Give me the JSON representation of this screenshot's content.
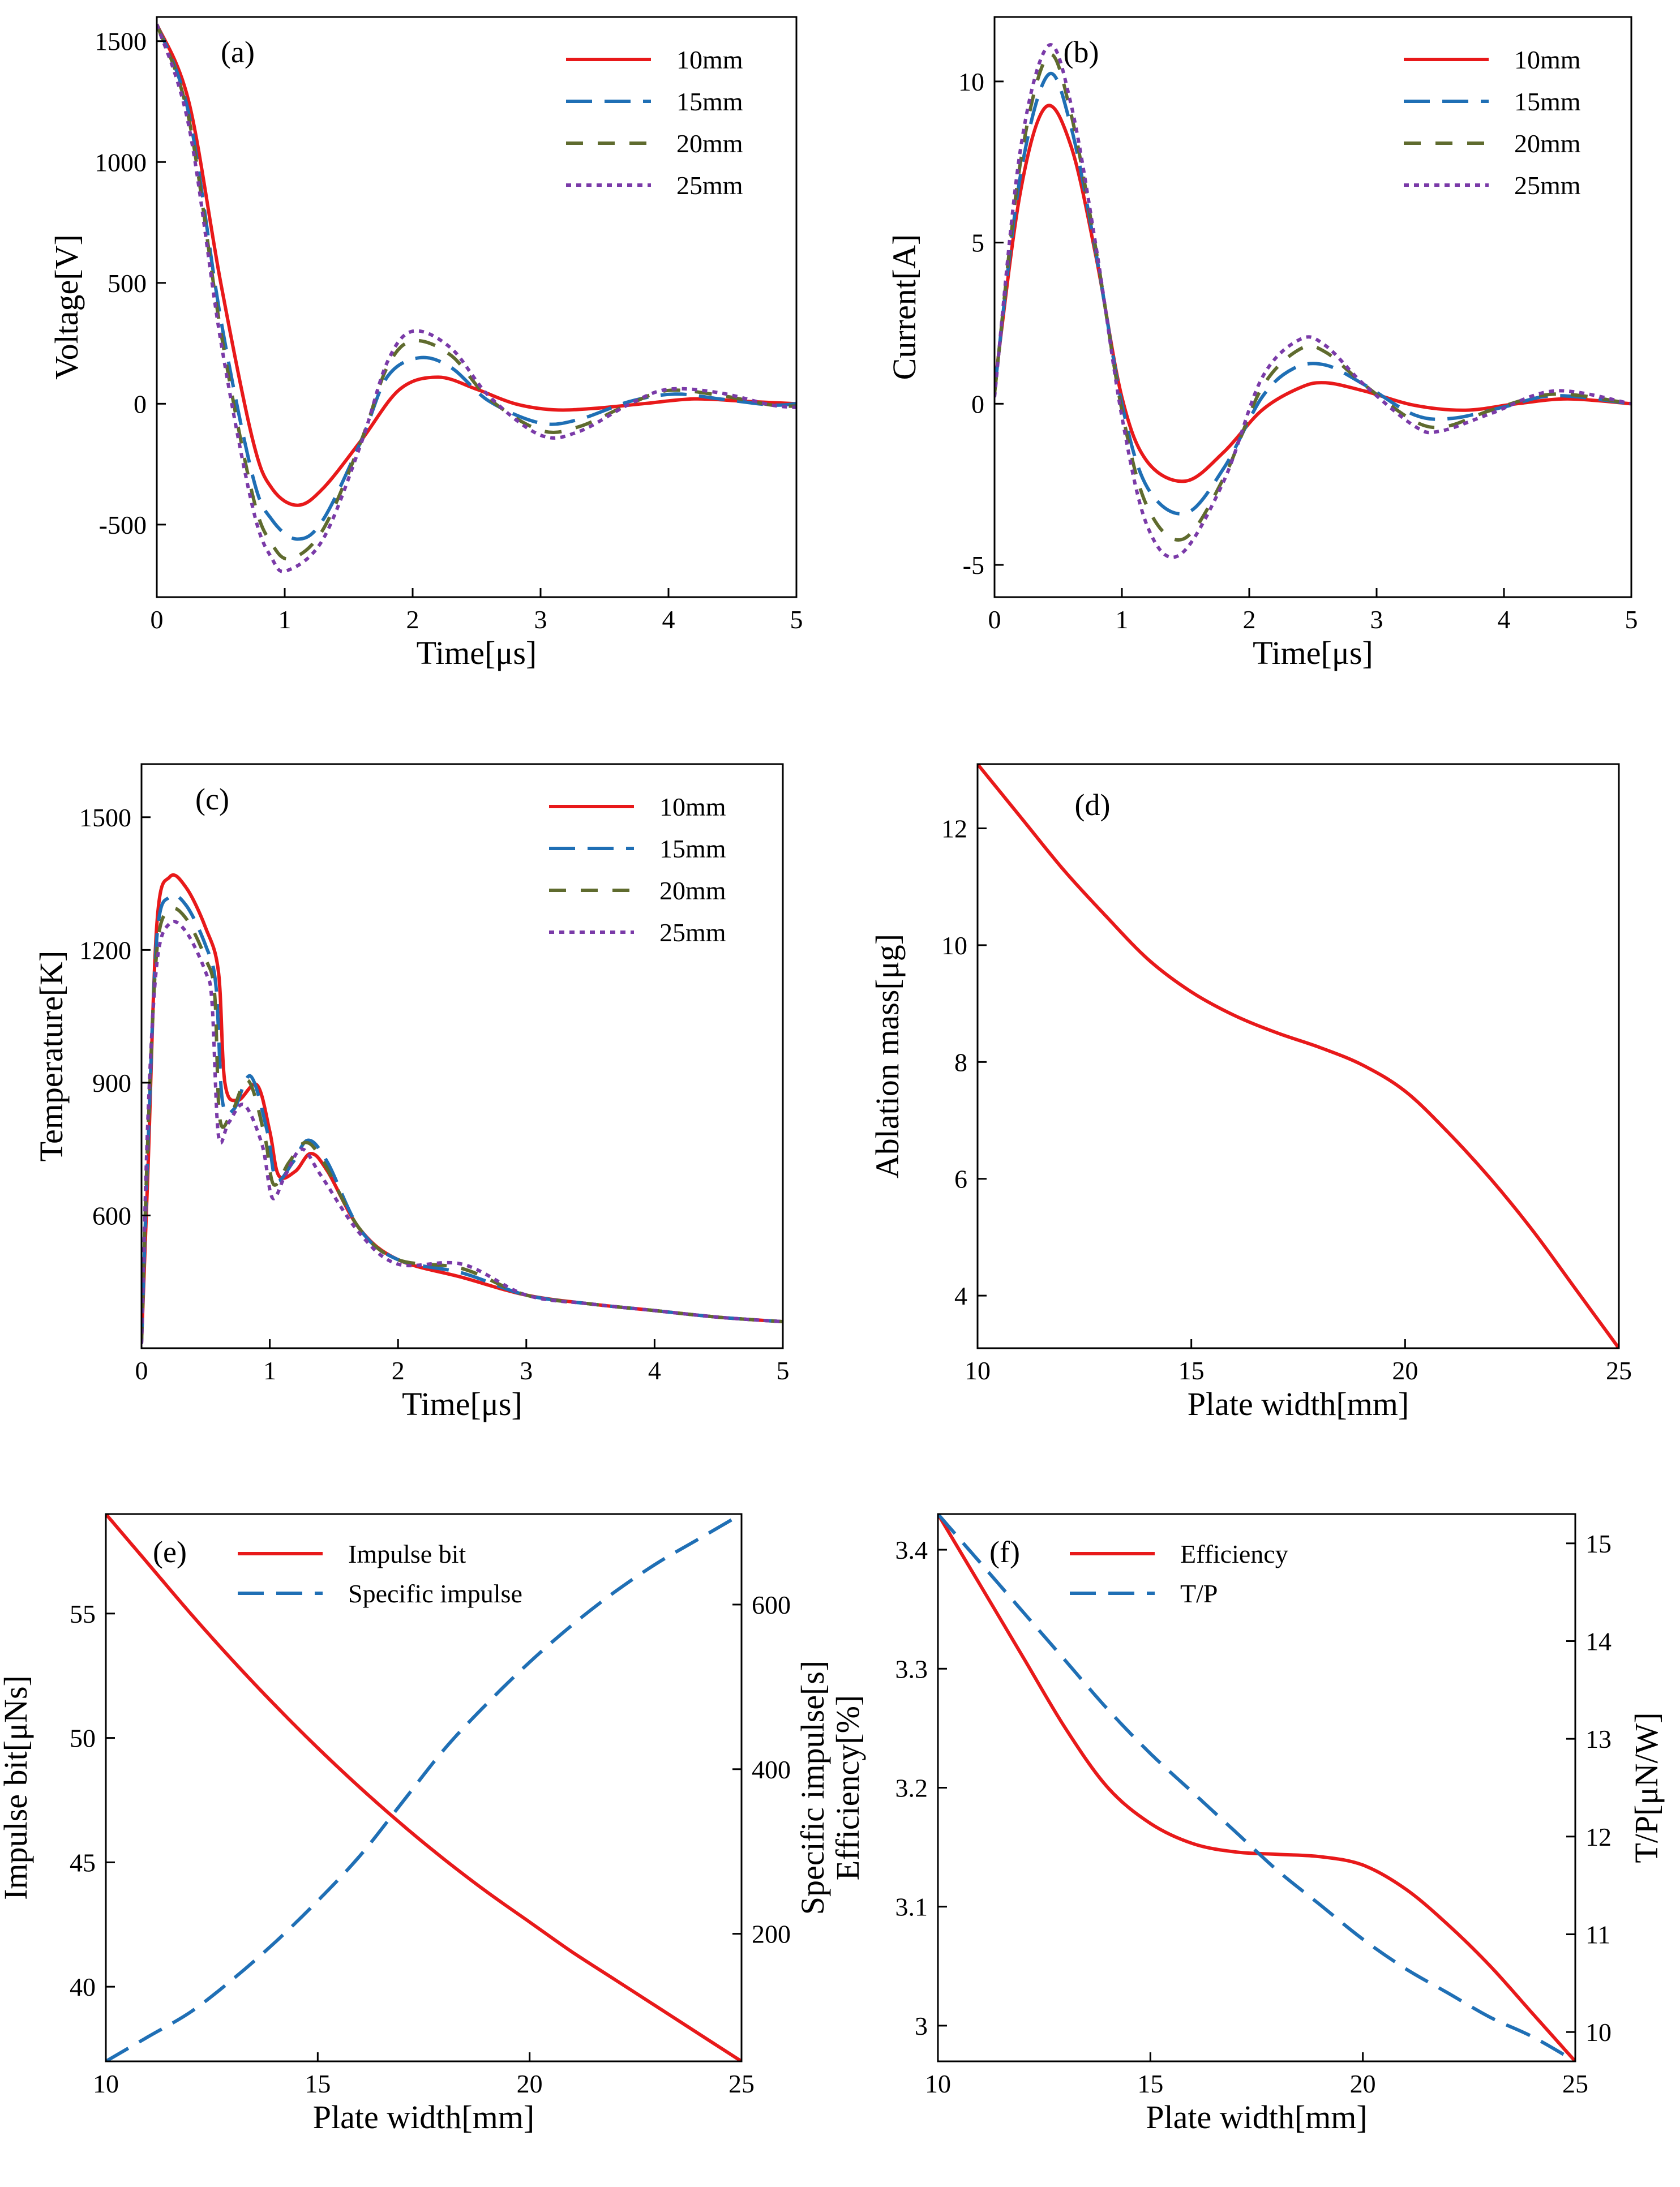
{
  "figure": {
    "panels_order": [
      "a",
      "b",
      "c",
      "d",
      "e",
      "f"
    ]
  },
  "chart_data": [
    {
      "id": "a",
      "type": "line",
      "panel_label": "(a)",
      "xlabel": "Time[μs]",
      "ylabel": "Voltage[V]",
      "xlim": [
        0,
        5
      ],
      "ylim": [
        -800,
        1600
      ],
      "xticks": [
        0,
        1,
        2,
        3,
        4,
        5
      ],
      "yticks": [
        -500,
        0,
        500,
        1000,
        1500
      ],
      "xtick_labels": [
        "0",
        "1",
        "2",
        "3",
        "4",
        "5"
      ],
      "ytick_labels": [
        "-500",
        "0",
        "500",
        "1000",
        "1500"
      ],
      "legend": {
        "position": "top-right"
      },
      "series": [
        {
          "name": "10mm",
          "color": "#e8191a",
          "dash": "solid",
          "x": [
            0,
            0.25,
            0.5,
            0.75,
            0.9,
            1.1,
            1.3,
            1.6,
            1.9,
            2.2,
            2.5,
            2.8,
            3.1,
            3.4,
            3.8,
            4.2,
            4.6,
            5.0
          ],
          "y": [
            1570,
            1250,
            500,
            -150,
            -350,
            -420,
            -350,
            -150,
            60,
            110,
            60,
            0,
            -25,
            -20,
            0,
            20,
            10,
            0
          ]
        },
        {
          "name": "15mm",
          "color": "#1f6fb5",
          "dash": "longdash",
          "x": [
            0,
            0.25,
            0.5,
            0.75,
            0.9,
            1.1,
            1.3,
            1.6,
            1.8,
            2.05,
            2.3,
            2.6,
            3.0,
            3.3,
            3.7,
            4.05,
            4.4,
            4.8,
            5.0
          ],
          "y": [
            1570,
            1200,
            350,
            -300,
            -480,
            -560,
            -480,
            -150,
            110,
            190,
            150,
            10,
            -80,
            -65,
            10,
            40,
            20,
            -5,
            0
          ]
        },
        {
          "name": "20mm",
          "color": "#5f6b2e",
          "dash": "dash",
          "x": [
            0,
            0.25,
            0.5,
            0.75,
            0.9,
            1.05,
            1.3,
            1.6,
            1.8,
            2.0,
            2.3,
            2.6,
            3.0,
            3.3,
            3.7,
            4.0,
            4.4,
            4.8,
            5.0
          ],
          "y": [
            1570,
            1180,
            300,
            -380,
            -580,
            -640,
            -520,
            -150,
            150,
            260,
            200,
            20,
            -110,
            -95,
            0,
            55,
            35,
            -5,
            -10
          ]
        },
        {
          "name": "25mm",
          "color": "#7a3aa8",
          "dash": "dot",
          "x": [
            0,
            0.25,
            0.5,
            0.75,
            0.9,
            1.02,
            1.3,
            1.6,
            1.8,
            2.0,
            2.3,
            2.6,
            3.0,
            3.3,
            3.7,
            4.0,
            4.4,
            4.8,
            5.0
          ],
          "y": [
            1570,
            1150,
            260,
            -430,
            -640,
            -690,
            -560,
            -160,
            170,
            300,
            230,
            30,
            -130,
            -115,
            0,
            60,
            45,
            -5,
            -15
          ]
        }
      ]
    },
    {
      "id": "b",
      "type": "line",
      "panel_label": "(b)",
      "xlabel": "Time[μs]",
      "ylabel": "Current[A]",
      "xlim": [
        0,
        5
      ],
      "ylim": [
        -6,
        12
      ],
      "xticks": [
        0,
        1,
        2,
        3,
        4,
        5
      ],
      "yticks": [
        -5,
        0,
        5,
        10
      ],
      "xtick_labels": [
        "0",
        "1",
        "2",
        "3",
        "4",
        "5"
      ],
      "ytick_labels": [
        "-5",
        "0",
        "5",
        "10"
      ],
      "legend": {
        "position": "top-right"
      },
      "series": [
        {
          "name": "10mm",
          "color": "#e8191a",
          "dash": "solid",
          "x": [
            0,
            0.2,
            0.4,
            0.6,
            0.8,
            1.0,
            1.2,
            1.5,
            1.8,
            2.1,
            2.4,
            2.6,
            2.9,
            3.3,
            3.7,
            4.1,
            4.5,
            5.0
          ],
          "y": [
            0.5,
            6.5,
            9.2,
            8.0,
            4.5,
            0.2,
            -1.8,
            -2.4,
            -1.5,
            -0.2,
            0.5,
            0.65,
            0.4,
            -0.05,
            -0.2,
            0,
            0.15,
            0
          ]
        },
        {
          "name": "15mm",
          "color": "#1f6fb5",
          "dash": "longdash",
          "x": [
            0,
            0.2,
            0.42,
            0.6,
            0.8,
            1.0,
            1.2,
            1.5,
            1.8,
            2.1,
            2.35,
            2.6,
            2.9,
            3.3,
            3.6,
            4.0,
            4.4,
            5.0
          ],
          "y": [
            0.4,
            7.0,
            10.2,
            8.6,
            4.6,
            0,
            -2.6,
            -3.4,
            -2.0,
            0.2,
            1.1,
            1.2,
            0.6,
            -0.35,
            -0.45,
            -0.1,
            0.25,
            0
          ]
        },
        {
          "name": "20mm",
          "color": "#5f6b2e",
          "dash": "dash",
          "x": [
            0,
            0.2,
            0.42,
            0.6,
            0.8,
            1.0,
            1.2,
            1.48,
            1.8,
            2.1,
            2.4,
            2.6,
            2.9,
            3.3,
            3.55,
            3.9,
            4.4,
            5.0
          ],
          "y": [
            0.3,
            7.4,
            10.8,
            9.0,
            4.7,
            -0.2,
            -3.2,
            -4.2,
            -2.3,
            0.5,
            1.7,
            1.6,
            0.6,
            -0.55,
            -0.7,
            -0.2,
            0.3,
            0
          ]
        },
        {
          "name": "25mm",
          "color": "#7a3aa8",
          "dash": "dot",
          "x": [
            0,
            0.2,
            0.42,
            0.6,
            0.8,
            1.0,
            1.2,
            1.45,
            1.8,
            2.1,
            2.4,
            2.6,
            2.9,
            3.3,
            3.5,
            3.9,
            4.4,
            5.0
          ],
          "y": [
            0.2,
            7.8,
            11.1,
            9.3,
            4.8,
            -0.4,
            -3.8,
            -4.7,
            -2.4,
            0.8,
            2.0,
            1.8,
            0.6,
            -0.7,
            -0.85,
            -0.3,
            0.4,
            0
          ]
        }
      ]
    },
    {
      "id": "c",
      "type": "line",
      "panel_label": "(c)",
      "xlabel": "Time[μs]",
      "ylabel": "Temperature[K]",
      "xlim": [
        0,
        5
      ],
      "ylim": [
        300,
        1620
      ],
      "xticks": [
        0,
        1,
        2,
        3,
        4,
        5
      ],
      "yticks": [
        600,
        900,
        1200,
        1500
      ],
      "xtick_labels": [
        "0",
        "1",
        "2",
        "3",
        "4",
        "5"
      ],
      "ytick_labels": [
        "600",
        "900",
        "1200",
        "1500"
      ],
      "legend": {
        "position": "top-right"
      },
      "series": [
        {
          "name": "10mm",
          "color": "#e8191a",
          "dash": "solid",
          "x": [
            0,
            0.05,
            0.12,
            0.22,
            0.35,
            0.5,
            0.6,
            0.65,
            0.75,
            0.9,
            1.0,
            1.07,
            1.2,
            1.32,
            1.45,
            1.7,
            2.0,
            2.5,
            3.0,
            3.5,
            4.0,
            4.5,
            5.0
          ],
          "y": [
            310,
            700,
            1260,
            1365,
            1340,
            1250,
            1150,
            900,
            860,
            895,
            790,
            690,
            700,
            740,
            700,
            570,
            500,
            460,
            420,
            400,
            385,
            370,
            360
          ]
        },
        {
          "name": "15mm",
          "color": "#1f6fb5",
          "dash": "longdash",
          "x": [
            0,
            0.05,
            0.12,
            0.22,
            0.35,
            0.5,
            0.58,
            0.63,
            0.72,
            0.85,
            0.98,
            1.05,
            1.18,
            1.3,
            1.45,
            1.7,
            2.0,
            2.5,
            3.0,
            3.5,
            4.0,
            4.5,
            5.0
          ],
          "y": [
            310,
            750,
            1230,
            1320,
            1300,
            1210,
            1120,
            860,
            840,
            915,
            790,
            680,
            720,
            770,
            720,
            570,
            500,
            470,
            420,
            400,
            385,
            370,
            360
          ]
        },
        {
          "name": "20mm",
          "color": "#5f6b2e",
          "dash": "dash",
          "x": [
            0,
            0.05,
            0.12,
            0.22,
            0.35,
            0.5,
            0.57,
            0.61,
            0.7,
            0.83,
            0.96,
            1.03,
            1.15,
            1.28,
            1.42,
            1.7,
            2.0,
            2.5,
            3.0,
            3.5,
            4.0,
            4.5,
            5.0
          ],
          "y": [
            310,
            780,
            1200,
            1290,
            1270,
            1180,
            1100,
            820,
            830,
            905,
            780,
            670,
            720,
            765,
            720,
            570,
            500,
            480,
            420,
            400,
            385,
            370,
            360
          ]
        },
        {
          "name": "25mm",
          "color": "#7a3aa8",
          "dash": "dot",
          "x": [
            0,
            0.05,
            0.12,
            0.22,
            0.35,
            0.5,
            0.55,
            0.6,
            0.68,
            0.8,
            0.94,
            1.02,
            1.12,
            1.25,
            1.4,
            1.7,
            2.0,
            2.5,
            3.0,
            3.5,
            4.0,
            4.5,
            5.0
          ],
          "y": [
            310,
            820,
            1170,
            1260,
            1240,
            1150,
            1080,
            780,
            810,
            850,
            760,
            640,
            690,
            750,
            690,
            560,
            490,
            490,
            420,
            400,
            385,
            370,
            360
          ]
        }
      ]
    },
    {
      "id": "d",
      "type": "line",
      "panel_label": "(d)",
      "xlabel": "Plate width[mm]",
      "ylabel": "Ablation mass[μg]",
      "xlim": [
        10,
        25
      ],
      "ylim": [
        3.1,
        13.1
      ],
      "xticks": [
        10,
        15,
        20,
        25
      ],
      "yticks": [
        4,
        6,
        8,
        10,
        12
      ],
      "xtick_labels": [
        "10",
        "15",
        "20",
        "25"
      ],
      "ytick_labels": [
        "4",
        "6",
        "8",
        "10",
        "12"
      ],
      "series": [
        {
          "name": "Ablation mass",
          "color": "#e8191a",
          "dash": "solid",
          "x": [
            10,
            11,
            12,
            13,
            14,
            15,
            16,
            17,
            18,
            19,
            20,
            21,
            22,
            23,
            24,
            25
          ],
          "y": [
            13.1,
            12.2,
            11.3,
            10.5,
            9.75,
            9.2,
            8.8,
            8.5,
            8.25,
            7.95,
            7.5,
            6.8,
            6.0,
            5.1,
            4.1,
            3.1
          ]
        }
      ]
    },
    {
      "id": "e",
      "type": "line",
      "panel_label": "(e)",
      "xlabel": "Plate width[mm]",
      "ylabel": "Impulse bit[μNs]",
      "y2label": "Specific impulse[s]",
      "xlim": [
        10,
        25
      ],
      "ylim": [
        37,
        59
      ],
      "y2lim": [
        45,
        710
      ],
      "xticks": [
        10,
        15,
        20,
        25
      ],
      "yticks": [
        40,
        45,
        50,
        55
      ],
      "y2ticks": [
        200,
        400,
        600
      ],
      "xtick_labels": [
        "10",
        "15",
        "20",
        "25"
      ],
      "ytick_labels": [
        "40",
        "45",
        "50",
        "55"
      ],
      "y2tick_labels": [
        "200",
        "400",
        "600"
      ],
      "legend": {
        "position": "top-left"
      },
      "series": [
        {
          "name": "Impulse bit",
          "color": "#e8191a",
          "dash": "solid",
          "axis": "left",
          "x": [
            10,
            11,
            12,
            13,
            14,
            15,
            16,
            17,
            18,
            19,
            20,
            21,
            22,
            23,
            24,
            25
          ],
          "y": [
            59,
            57,
            55,
            53.1,
            51.3,
            49.6,
            48,
            46.5,
            45.1,
            43.8,
            42.6,
            41.4,
            40.3,
            39.2,
            38.1,
            37
          ]
        },
        {
          "name": "Specific impulse",
          "color": "#1f6fb5",
          "dash": "longdash",
          "axis": "right",
          "x": [
            10,
            11,
            12,
            13,
            14,
            15,
            16,
            17,
            18,
            19,
            20,
            21,
            22,
            23,
            24,
            25
          ],
          "y": [
            45,
            75,
            105,
            145,
            190,
            240,
            295,
            360,
            425,
            480,
            530,
            575,
            615,
            650,
            680,
            710
          ]
        }
      ]
    },
    {
      "id": "f",
      "type": "line",
      "panel_label": "(f)",
      "xlabel": "Plate width[mm]",
      "ylabel": "Efficiency[%]",
      "y2label": "T/P[μN/W]",
      "xlim": [
        10,
        25
      ],
      "ylim": [
        2.97,
        3.43
      ],
      "y2lim": [
        9.7,
        15.3
      ],
      "xticks": [
        10,
        15,
        20,
        25
      ],
      "yticks": [
        3.0,
        3.1,
        3.2,
        3.3,
        3.4
      ],
      "y2ticks": [
        10,
        11,
        12,
        13,
        14,
        15
      ],
      "xtick_labels": [
        "10",
        "15",
        "20",
        "25"
      ],
      "ytick_labels": [
        "3",
        "3.1",
        "3.2",
        "3.3",
        "3.4"
      ],
      "y2tick_labels": [
        "10",
        "11",
        "12",
        "13",
        "14",
        "15"
      ],
      "legend": {
        "position": "top-left"
      },
      "series": [
        {
          "name": "Efficiency",
          "color": "#e8191a",
          "dash": "solid",
          "axis": "left",
          "x": [
            10,
            11,
            12,
            13,
            14,
            15,
            16,
            17,
            18,
            19,
            20,
            21,
            22,
            23,
            24,
            25
          ],
          "y": [
            3.43,
            3.37,
            3.31,
            3.25,
            3.2,
            3.17,
            3.153,
            3.146,
            3.144,
            3.142,
            3.135,
            3.115,
            3.085,
            3.05,
            3.01,
            2.97
          ]
        },
        {
          "name": "T/P",
          "color": "#1f6fb5",
          "dash": "longdash",
          "axis": "right",
          "x": [
            10,
            11,
            12,
            13,
            14,
            15,
            16,
            17,
            18,
            19,
            20,
            21,
            22,
            23,
            24,
            25
          ],
          "y": [
            15.3,
            14.8,
            14.3,
            13.8,
            13.3,
            12.85,
            12.45,
            12.05,
            11.65,
            11.3,
            10.95,
            10.65,
            10.4,
            10.15,
            9.95,
            9.7
          ]
        }
      ]
    }
  ]
}
